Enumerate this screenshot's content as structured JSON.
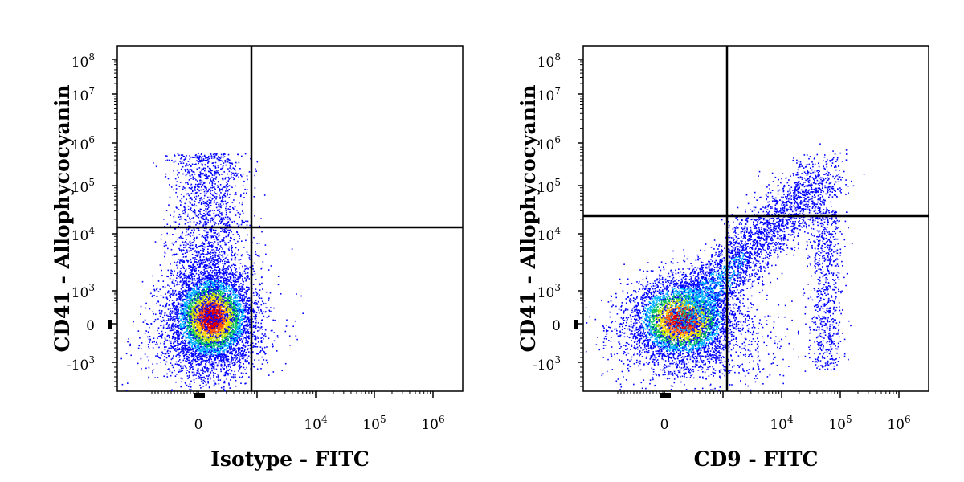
{
  "chart_data": [
    {
      "type": "scatter",
      "subtype": "flow-cytometry-density-dot-plot",
      "xlabel": "Isotype - FITC",
      "ylabel": "CD41 - Allophycocyanin",
      "xscale": "biexponential",
      "yscale": "biexponential",
      "x_ticks": [
        {
          "value": 0,
          "base": "0",
          "exp": ""
        },
        {
          "value": 10000,
          "base": "10",
          "exp": "4"
        },
        {
          "value": 100000,
          "base": "10",
          "exp": "5"
        },
        {
          "value": 1000000,
          "base": "10",
          "exp": "6"
        }
      ],
      "y_ticks": [
        {
          "value": -1000,
          "base": "-10",
          "exp": "3"
        },
        {
          "value": 0,
          "base": "0",
          "exp": ""
        },
        {
          "value": 1000,
          "base": "10",
          "exp": "3"
        },
        {
          "value": 10000,
          "base": "10",
          "exp": "4"
        },
        {
          "value": 100000,
          "base": "10",
          "exp": "5"
        },
        {
          "value": 1000000,
          "base": "10",
          "exp": "6"
        },
        {
          "value": 10000000,
          "base": "10",
          "exp": "7"
        },
        {
          "value": 100000000,
          "base": "10",
          "exp": "8"
        }
      ],
      "gates": {
        "x": 1800,
        "y": 13000
      },
      "populations": [
        {
          "name": "main",
          "center_x": 300,
          "center_y": 0,
          "spread": "compact",
          "fraction": 0.78
        },
        {
          "name": "upper-tail",
          "center_x": 300,
          "center_y": 40000,
          "spread": "vertical",
          "fraction": 0.22
        }
      ],
      "color_scale": [
        "#0000ff",
        "#00b4ff",
        "#00c060",
        "#b0e000",
        "#ffd000",
        "#ff5000",
        "#e00000"
      ],
      "grid": false
    },
    {
      "type": "scatter",
      "subtype": "flow-cytometry-density-dot-plot",
      "xlabel": "CD9 - FITC",
      "ylabel": "CD41 - Allophycocyanin",
      "xscale": "biexponential",
      "yscale": "biexponential",
      "x_ticks": [
        {
          "value": 0,
          "base": "0",
          "exp": ""
        },
        {
          "value": 10000,
          "base": "10",
          "exp": "4"
        },
        {
          "value": 100000,
          "base": "10",
          "exp": "5"
        },
        {
          "value": 1000000,
          "base": "10",
          "exp": "6"
        }
      ],
      "y_ticks": [
        {
          "value": -1000,
          "base": "-10",
          "exp": "3"
        },
        {
          "value": 0,
          "base": "0",
          "exp": ""
        },
        {
          "value": 1000,
          "base": "10",
          "exp": "3"
        },
        {
          "value": 10000,
          "base": "10",
          "exp": "4"
        },
        {
          "value": 100000,
          "base": "10",
          "exp": "5"
        },
        {
          "value": 1000000,
          "base": "10",
          "exp": "6"
        },
        {
          "value": 10000000,
          "base": "10",
          "exp": "7"
        },
        {
          "value": 100000000,
          "base": "10",
          "exp": "8"
        }
      ],
      "gates": {
        "x": 1800,
        "y": 20000
      },
      "populations": [
        {
          "name": "main",
          "center_x": 200,
          "center_y": 0,
          "spread": "compact",
          "fraction": 0.55
        },
        {
          "name": "diagonal",
          "center_x": 5000,
          "center_y": 15000,
          "spread": "diagonal",
          "fraction": 0.35
        },
        {
          "name": "high-cd9",
          "center_x": 60000,
          "center_y": 3000,
          "spread": "vertical",
          "fraction": 0.1
        }
      ],
      "color_scale": [
        "#0000ff",
        "#00b4ff",
        "#00c060",
        "#b0e000",
        "#ffd000",
        "#ff5000",
        "#e00000"
      ],
      "grid": false
    }
  ]
}
